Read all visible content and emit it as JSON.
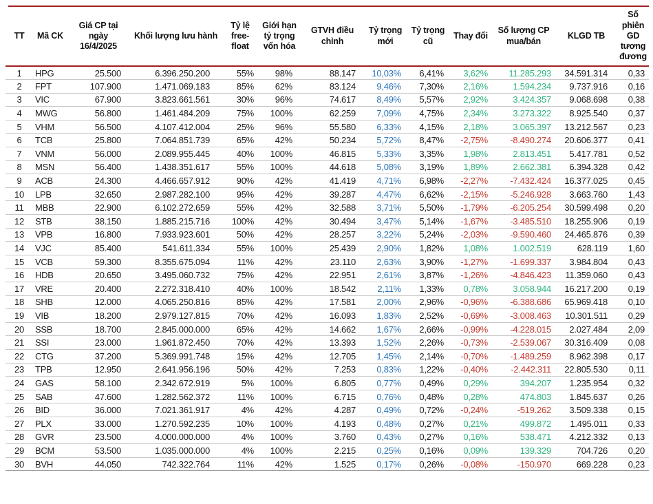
{
  "colors": {
    "accent_line": "#a02020",
    "weight_new_blue": "#2e75b6",
    "positive_green": "#2eb47d",
    "negative_red": "#c43a2e",
    "row_separator": "#c9c9c9",
    "text": "#1c1c1c"
  },
  "table": {
    "columns": [
      {
        "key": "tt",
        "label": "TT"
      },
      {
        "key": "code",
        "label": "Mã CK"
      },
      {
        "key": "price",
        "label": "Giá CP tại ngày 16/4/2025"
      },
      {
        "key": "shares",
        "label": "Khối lượng lưu hành"
      },
      {
        "key": "freefloat",
        "label": "Tỷ lệ free-float"
      },
      {
        "key": "cap_limit",
        "label": "Giới hạn tỷ trọng vốn hóa"
      },
      {
        "key": "gtvh",
        "label": "GTVH điều chỉnh"
      },
      {
        "key": "new_weight",
        "label": "Tỷ trọng mới"
      },
      {
        "key": "old_weight",
        "label": "Tỷ trọng cũ"
      },
      {
        "key": "change",
        "label": "Thay đổi"
      },
      {
        "key": "cp",
        "label": "Số lượng CP mua/bán"
      },
      {
        "key": "klgd",
        "label": "KLGD TB"
      },
      {
        "key": "sessions",
        "label": "Số phiên GD tương đương"
      }
    ],
    "rows": [
      [
        "1",
        "HPG",
        "25.500",
        "6.396.250.200",
        "55%",
        "98%",
        "88.147",
        "10,03%",
        "6,41%",
        "3,62%",
        "11.285.293",
        "34.591.314",
        "0,33"
      ],
      [
        "2",
        "FPT",
        "107.900",
        "1.471.069.183",
        "85%",
        "62%",
        "83.124",
        "9,46%",
        "7,30%",
        "2,16%",
        "1.594.234",
        "9.737.916",
        "0,16"
      ],
      [
        "3",
        "VIC",
        "67.900",
        "3.823.661.561",
        "30%",
        "96%",
        "74.617",
        "8,49%",
        "5,57%",
        "2,92%",
        "3.424.357",
        "9.068.698",
        "0,38"
      ],
      [
        "4",
        "MWG",
        "56.800",
        "1.461.484.209",
        "75%",
        "100%",
        "62.259",
        "7,09%",
        "4,75%",
        "2,34%",
        "3.273.322",
        "8.925.540",
        "0,37"
      ],
      [
        "5",
        "VHM",
        "56.500",
        "4.107.412.004",
        "25%",
        "96%",
        "55.580",
        "6,33%",
        "4,15%",
        "2,18%",
        "3.065.397",
        "13.212.567",
        "0,23"
      ],
      [
        "6",
        "TCB",
        "25.800",
        "7.064.851.739",
        "65%",
        "42%",
        "50.234",
        "5,72%",
        "8,47%",
        "-2,75%",
        "-8.490.274",
        "20.606.377",
        "0,41"
      ],
      [
        "7",
        "VNM",
        "56.000",
        "2.089.955.445",
        "40%",
        "100%",
        "46.815",
        "5,33%",
        "3,35%",
        "1,98%",
        "2.813.451",
        "5.417.781",
        "0,52"
      ],
      [
        "8",
        "MSN",
        "56.400",
        "1.438.351.617",
        "55%",
        "100%",
        "44.618",
        "5,08%",
        "3,19%",
        "1,89%",
        "2.662.381",
        "6.394.328",
        "0,42"
      ],
      [
        "9",
        "ACB",
        "24.300",
        "4.466.657.912",
        "90%",
        "42%",
        "41.419",
        "4,71%",
        "6,98%",
        "-2,27%",
        "-7.432.424",
        "16.377.025",
        "0,45"
      ],
      [
        "10",
        "LPB",
        "32.650",
        "2.987.282.100",
        "95%",
        "42%",
        "39.287",
        "4,47%",
        "6,62%",
        "-2,15%",
        "-5.246.928",
        "3.663.760",
        "1,43"
      ],
      [
        "11",
        "MBB",
        "22.900",
        "6.102.272.659",
        "55%",
        "42%",
        "32.588",
        "3,71%",
        "5,50%",
        "-1,79%",
        "-6.205.254",
        "30.599.498",
        "0,20"
      ],
      [
        "12",
        "STB",
        "38.150",
        "1.885.215.716",
        "100%",
        "42%",
        "30.494",
        "3,47%",
        "5,14%",
        "-1,67%",
        "-3.485.510",
        "18.255.906",
        "0,19"
      ],
      [
        "13",
        "VPB",
        "16.800",
        "7.933.923.601",
        "50%",
        "42%",
        "28.257",
        "3,22%",
        "5,24%",
        "-2,03%",
        "-9.590.460",
        "24.465.876",
        "0,39"
      ],
      [
        "14",
        "VJC",
        "85.400",
        "541.611.334",
        "55%",
        "100%",
        "25.439",
        "2,90%",
        "1,82%",
        "1,08%",
        "1.002.519",
        "628.119",
        "1,60"
      ],
      [
        "15",
        "VCB",
        "59.300",
        "8.355.675.094",
        "11%",
        "42%",
        "23.110",
        "2,63%",
        "3,90%",
        "-1,27%",
        "-1.699.337",
        "3.984.804",
        "0,43"
      ],
      [
        "16",
        "HDB",
        "20.650",
        "3.495.060.732",
        "75%",
        "42%",
        "22.951",
        "2,61%",
        "3,87%",
        "-1,26%",
        "-4.846.423",
        "11.359.060",
        "0,43"
      ],
      [
        "17",
        "VRE",
        "20.400",
        "2.272.318.410",
        "40%",
        "100%",
        "18.542",
        "2,11%",
        "1,33%",
        "0,78%",
        "3.058.944",
        "16.217.200",
        "0,19"
      ],
      [
        "18",
        "SHB",
        "12.000",
        "4.065.250.816",
        "85%",
        "42%",
        "17.581",
        "2,00%",
        "2,96%",
        "-0,96%",
        "-6.388.686",
        "65.969.418",
        "0,10"
      ],
      [
        "19",
        "VIB",
        "18.200",
        "2.979.127.815",
        "70%",
        "42%",
        "16.093",
        "1,83%",
        "2,52%",
        "-0,69%",
        "-3.008.463",
        "10.301.511",
        "0,29"
      ],
      [
        "20",
        "SSB",
        "18.700",
        "2.845.000.000",
        "65%",
        "42%",
        "14.662",
        "1,67%",
        "2,66%",
        "-0,99%",
        "-4.228.015",
        "2.027.484",
        "2,09"
      ],
      [
        "21",
        "SSI",
        "23.000",
        "1.961.872.450",
        "70%",
        "42%",
        "13.393",
        "1,52%",
        "2,26%",
        "-0,73%",
        "-2.539.067",
        "30.316.409",
        "0,08"
      ],
      [
        "22",
        "CTG",
        "37.200",
        "5.369.991.748",
        "15%",
        "42%",
        "12.705",
        "1,45%",
        "2,14%",
        "-0,70%",
        "-1.489.259",
        "8.962.398",
        "0,17"
      ],
      [
        "23",
        "TPB",
        "12.950",
        "2.641.956.196",
        "50%",
        "42%",
        "7.253",
        "0,83%",
        "1,22%",
        "-0,40%",
        "-2.442.311",
        "22.805.530",
        "0,11"
      ],
      [
        "24",
        "GAS",
        "58.100",
        "2.342.672.919",
        "5%",
        "100%",
        "6.805",
        "0,77%",
        "0,49%",
        "0,29%",
        "394.207",
        "1.235.954",
        "0,32"
      ],
      [
        "25",
        "SAB",
        "47.600",
        "1.282.562.372",
        "11%",
        "100%",
        "6.715",
        "0,76%",
        "0,48%",
        "0,28%",
        "474.803",
        "1.845.637",
        "0,26"
      ],
      [
        "26",
        "BID",
        "36.000",
        "7.021.361.917",
        "4%",
        "42%",
        "4.287",
        "0,49%",
        "0,72%",
        "-0,24%",
        "-519.262",
        "3.509.338",
        "0,15"
      ],
      [
        "27",
        "PLX",
        "33.000",
        "1.270.592.235",
        "10%",
        "100%",
        "4.193",
        "0,48%",
        "0,27%",
        "0,21%",
        "499.872",
        "1.495.011",
        "0,33"
      ],
      [
        "28",
        "GVR",
        "23.500",
        "4.000.000.000",
        "4%",
        "100%",
        "3.760",
        "0,43%",
        "0,27%",
        "0,16%",
        "538.471",
        "4.212.332",
        "0,13"
      ],
      [
        "29",
        "BCM",
        "53.500",
        "1.035.000.000",
        "4%",
        "100%",
        "2.215",
        "0,25%",
        "0,16%",
        "0,09%",
        "139.329",
        "704.726",
        "0,20"
      ],
      [
        "30",
        "BVH",
        "44.050",
        "742.322.764",
        "11%",
        "42%",
        "1.525",
        "0,17%",
        "0,26%",
        "-0,08%",
        "-150.970",
        "669.228",
        "0,23"
      ]
    ]
  }
}
